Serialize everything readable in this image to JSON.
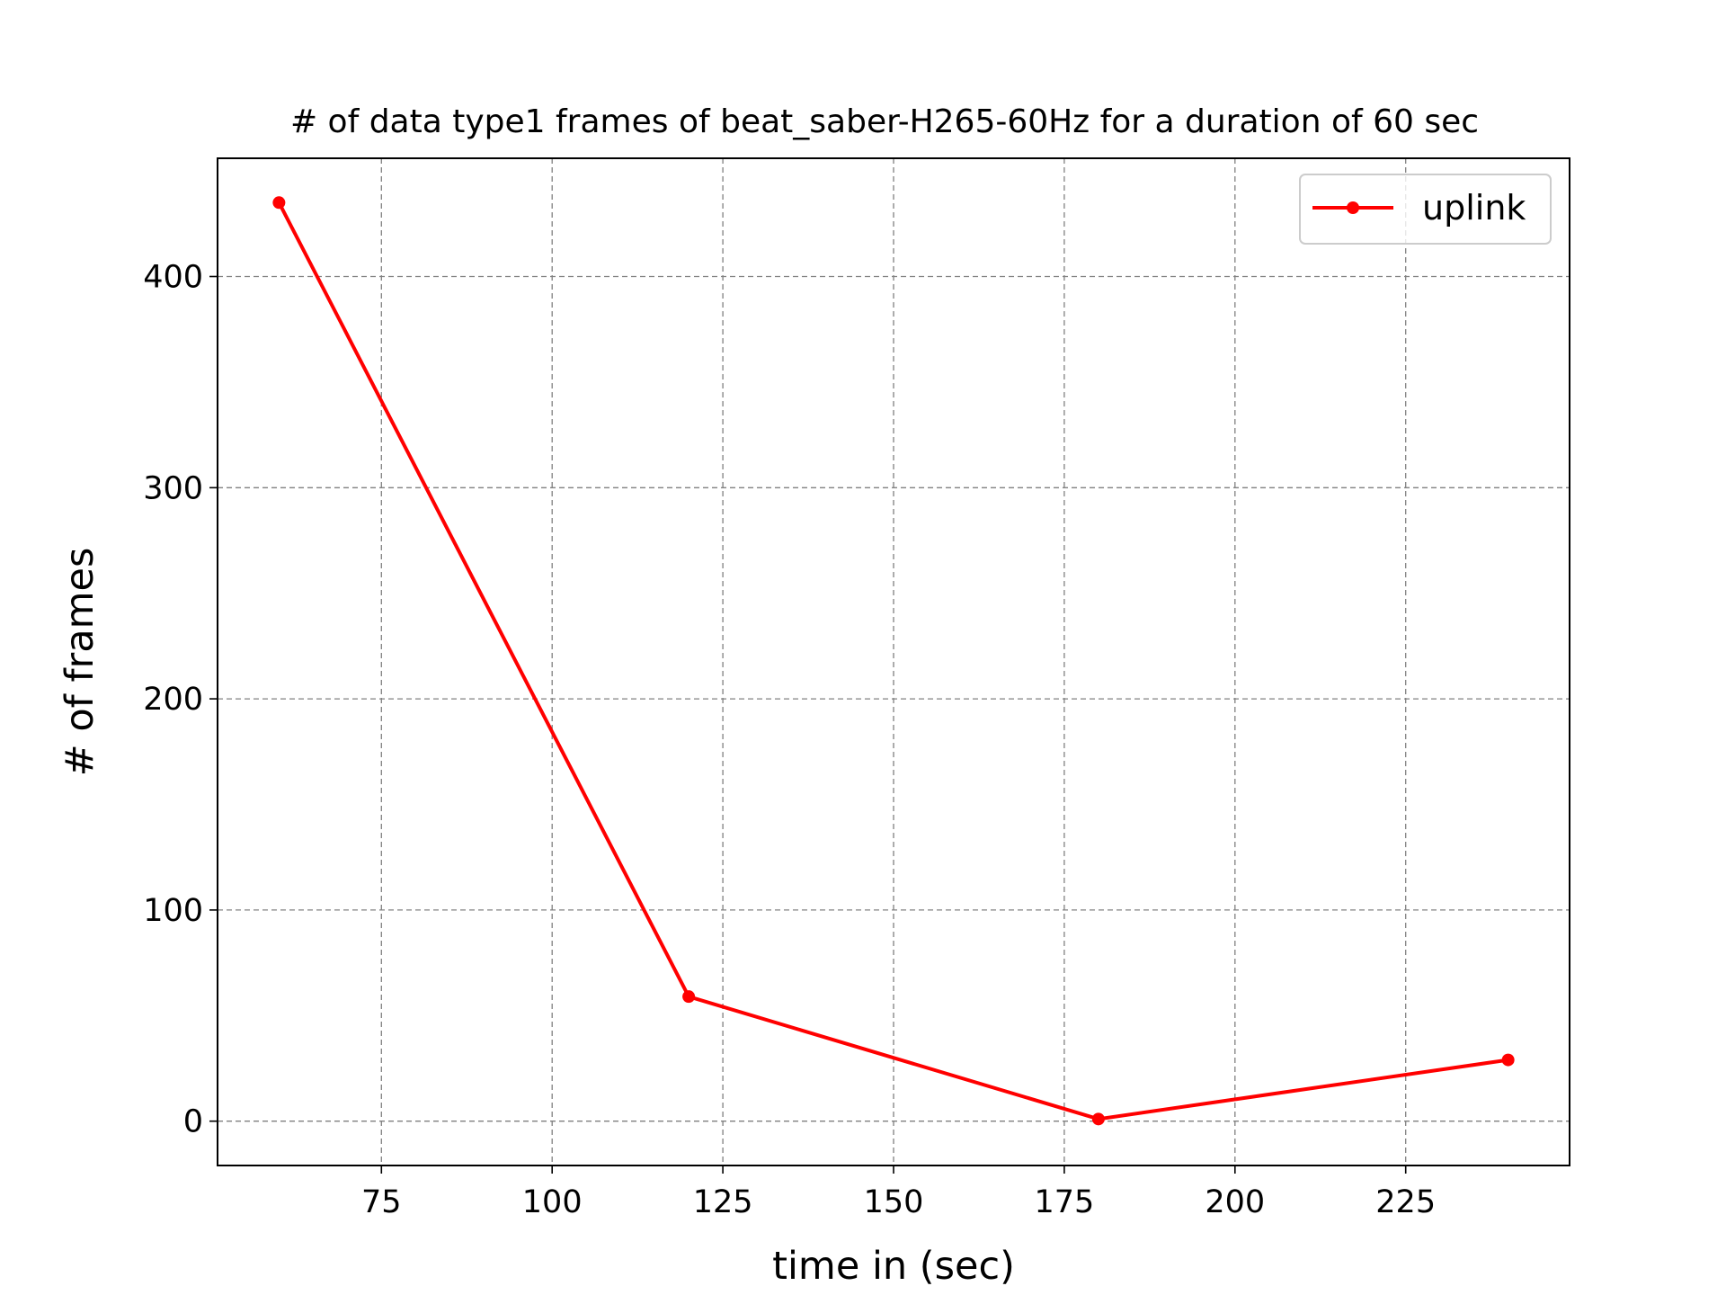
{
  "chart_data": {
    "type": "line",
    "title": "# of data type1 frames of beat_saber-H265-60Hz for a duration of 60 sec",
    "xlabel": "time in (sec)",
    "ylabel": "# of frames",
    "xlim": [
      51,
      249
    ],
    "ylim": [
      -21,
      456
    ],
    "xticks": [
      75,
      100,
      125,
      150,
      175,
      200,
      225
    ],
    "yticks": [
      0,
      100,
      200,
      300,
      400
    ],
    "grid": true,
    "legend_position": "top-right",
    "series": [
      {
        "name": "uplink",
        "color": "#ff0000",
        "marker": "circle",
        "x": [
          60,
          120,
          180,
          240
        ],
        "y": [
          435,
          59,
          1,
          29
        ]
      }
    ]
  }
}
